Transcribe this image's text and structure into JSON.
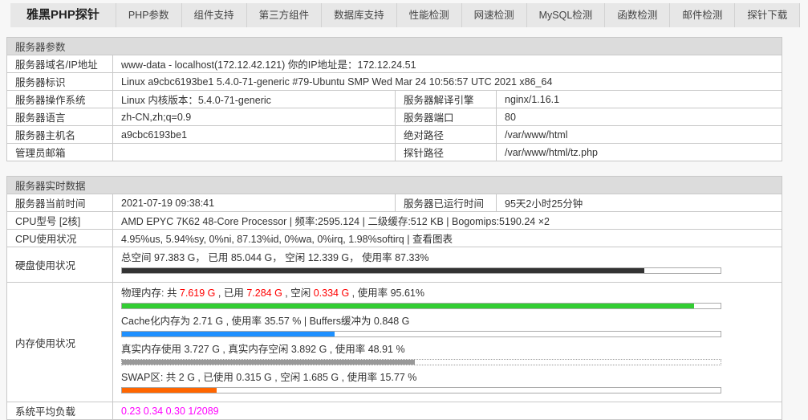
{
  "nav": {
    "brand": "雅黑PHP探针",
    "tabs": [
      {
        "label": "PHP参数"
      },
      {
        "label": "组件支持"
      },
      {
        "label": "第三方组件"
      },
      {
        "label": "数据库支持"
      },
      {
        "label": "性能检测"
      },
      {
        "label": "网速检测"
      },
      {
        "label": "MySQL检测"
      },
      {
        "label": "函数检测"
      },
      {
        "label": "邮件检测"
      },
      {
        "label": "探针下载"
      }
    ]
  },
  "server_params": {
    "title": "服务器参数",
    "rows_full": [
      {
        "label": "服务器域名/IP地址",
        "value": "www-data - localhost(172.12.42.121)  你的IP地址是：172.12.24.51"
      },
      {
        "label": "服务器标识",
        "value": "Linux a9cbc6193be1 5.4.0-71-generic #79-Ubuntu SMP Wed Mar 24 10:56:57 UTC 2021 x86_64"
      }
    ],
    "rows_pair": [
      {
        "label1": "服务器操作系统",
        "value1": "Linux  内核版本：5.4.0-71-generic",
        "label2": "服务器解译引擎",
        "value2": "nginx/1.16.1"
      },
      {
        "label1": "服务器语言",
        "value1": "zh-CN,zh;q=0.9",
        "label2": "服务器端口",
        "value2": "80"
      },
      {
        "label1": "服务器主机名",
        "value1": "a9cbc6193be1",
        "label2": "绝对路径",
        "value2": "/var/www/html"
      },
      {
        "label1": "管理员邮箱",
        "value1": "",
        "label2": "探针路径",
        "value2": "/var/www/html/tz.php"
      }
    ]
  },
  "realtime": {
    "title": "服务器实时数据",
    "time_row": {
      "label1": "服务器当前时间",
      "value1": "2021-07-19 09:38:41",
      "label2": "服务器已运行时间",
      "value2": "95天2小时25分钟"
    },
    "cpu_model": {
      "label": "CPU型号 [2核]",
      "value": "AMD EPYC 7K62 48-Core Processor | 频率:2595.124 | 二级缓存:512 KB | Bogomips:5190.24 ×2"
    },
    "cpu_usage": {
      "label": "CPU使用状况",
      "value": "4.95%us, 5.94%sy, 0%ni, 87.13%id, 0%wa, 0%irq, 1.98%softirq | ",
      "link": "查看图表"
    },
    "disk": {
      "label": "硬盘使用状况",
      "text": "总空间 97.383 G， 已用 85.044 G， 空闲 12.339 G， 使用率 87.33%",
      "bar": {
        "percent": "87.33%",
        "color": "#333333"
      }
    },
    "memory": {
      "label": "内存使用状况",
      "physical": {
        "p1": "物理内存: 共 ",
        "r1": "7.619 G",
        "p2": " , 已用 ",
        "r2": "7.284 G",
        "p3": " , 空闲 ",
        "r3": "0.334 G",
        "p4": " , 使用率 95.61%",
        "bar": {
          "percent": "95.61%",
          "color": "#32cd32"
        }
      },
      "cache": {
        "text": "Cache化内存为 2.71 G , 使用率 35.57 % | Buffers缓冲为 0.848 G",
        "bar": {
          "percent": "35.57%",
          "color": "#1e90ff"
        }
      },
      "real": {
        "text": "真实内存使用 3.727 G , 真实内存空闲 3.892 G , 使用率 48.91 %",
        "bar": {
          "percent": "48.91%",
          "color": "#999999"
        }
      },
      "swap": {
        "text": "SWAP区: 共 2 G , 已使用 0.315 G , 空闲 1.685 G , 使用率 15.77 %",
        "bar": {
          "percent": "15.77%",
          "color": "#ff6600"
        }
      }
    },
    "load": {
      "label": "系统平均负载",
      "value": "0.23 0.34 0.30 1/2089"
    }
  },
  "colors": {
    "red_value": "#ff0000",
    "load_value": "#ff00ff",
    "bar_disk": "#333333",
    "bar_physical": "#32cd32",
    "bar_cache": "#1e90ff",
    "bar_real": "#999999",
    "bar_swap": "#ff6600"
  }
}
